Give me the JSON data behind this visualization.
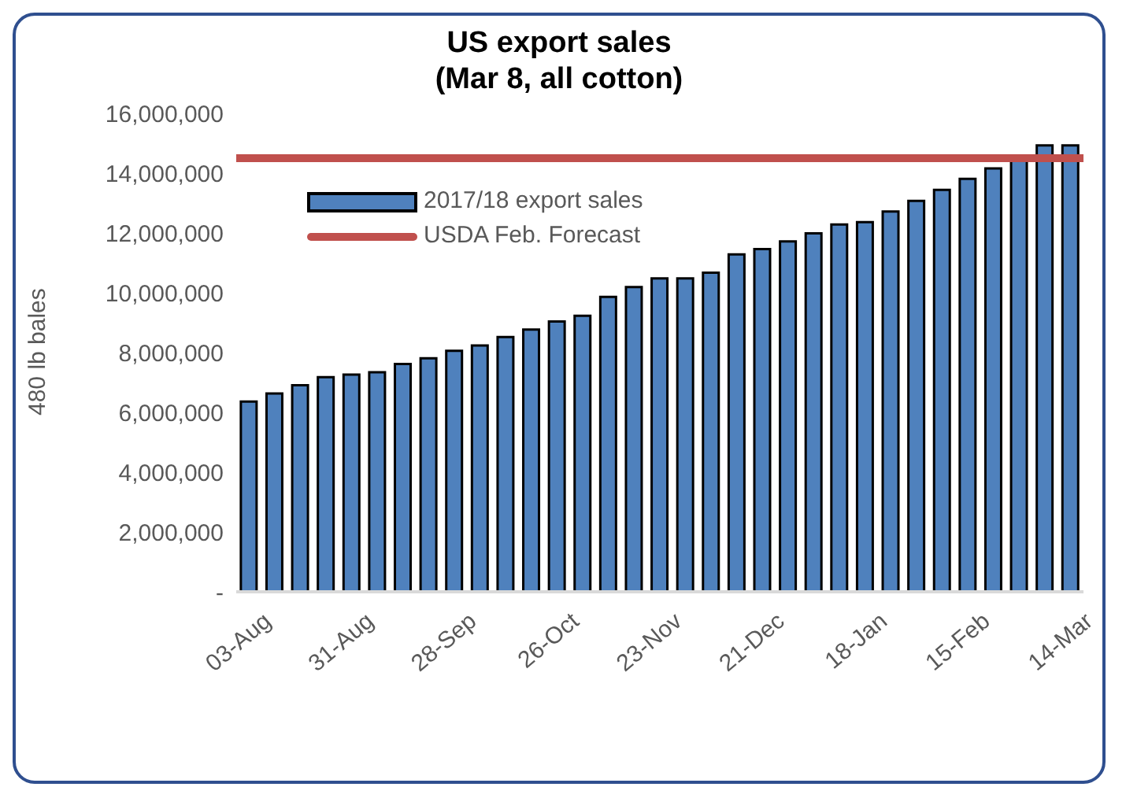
{
  "chart_data": {
    "type": "bar",
    "title": "US export sales",
    "subtitle": "(Mar 8, all cotton)",
    "ylabel": "480 lb bales",
    "categories": [
      "03-Aug",
      null,
      null,
      null,
      "31-Aug",
      null,
      null,
      null,
      "28-Sep",
      null,
      null,
      null,
      "26-Oct",
      null,
      null,
      null,
      "23-Nov",
      null,
      null,
      null,
      "21-Dec",
      null,
      null,
      null,
      "18-Jan",
      null,
      null,
      null,
      "15-Feb",
      null,
      null,
      null,
      "14-Mar"
    ],
    "series": [
      {
        "name": "2017/18 export sales",
        "color": "#4f81bd",
        "values": [
          6360000,
          6630000,
          6910000,
          7180000,
          7260000,
          7340000,
          7620000,
          7810000,
          8060000,
          8240000,
          8520000,
          8770000,
          9040000,
          9230000,
          9860000,
          10190000,
          10480000,
          10480000,
          10670000,
          11280000,
          11460000,
          11720000,
          11990000,
          12280000,
          12360000,
          12720000,
          13070000,
          13440000,
          13810000,
          14160000,
          14520000,
          14930000,
          14930000
        ]
      }
    ],
    "ref_lines": [
      {
        "axis": "y",
        "value": 14500000,
        "label": "USDA Feb. Forecast",
        "color": "#c0504d"
      }
    ],
    "ylim": [
      0,
      16000000
    ],
    "yticks": [
      {
        "value": 0,
        "label": "-"
      },
      {
        "value": 2000000,
        "label": "2,000,000"
      },
      {
        "value": 4000000,
        "label": "4,000,000"
      },
      {
        "value": 6000000,
        "label": "6,000,000"
      },
      {
        "value": 8000000,
        "label": "8,000,000"
      },
      {
        "value": 10000000,
        "label": "10,000,000"
      },
      {
        "value": 12000000,
        "label": "12,000,000"
      },
      {
        "value": 14000000,
        "label": "14,000,000"
      },
      {
        "value": 16000000,
        "label": "16,000,000"
      }
    ],
    "grid": false,
    "legend": "top left"
  }
}
